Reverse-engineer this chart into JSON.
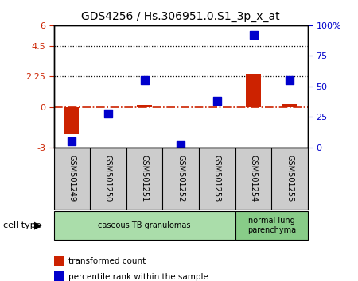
{
  "title": "GDS4256 / Hs.306951.0.S1_3p_x_at",
  "samples": [
    "GSM501249",
    "GSM501250",
    "GSM501251",
    "GSM501252",
    "GSM501253",
    "GSM501254",
    "GSM501255"
  ],
  "transformed_count": [
    -2.0,
    -0.05,
    0.15,
    -0.05,
    -0.05,
    2.4,
    0.22
  ],
  "percentile_rank": [
    5,
    28,
    55,
    2,
    38,
    92,
    55
  ],
  "left_ylim": [
    -3,
    6
  ],
  "right_ylim": [
    0,
    100
  ],
  "left_yticks": [
    -3,
    0,
    2.25,
    4.5,
    6
  ],
  "left_yticklabels": [
    "-3",
    "0",
    "2.25",
    "4.5",
    "6"
  ],
  "right_yticks": [
    0,
    25,
    50,
    75,
    100
  ],
  "right_yticklabels": [
    "0",
    "25",
    "50",
    "75",
    "100%"
  ],
  "hlines": [
    4.5,
    2.25
  ],
  "bar_color": "#cc2200",
  "dot_color": "#0000cc",
  "zero_line_color": "#cc2200",
  "cell_type_groups": [
    {
      "label": "caseous TB granulomas",
      "indices": [
        0,
        1,
        2,
        3,
        4
      ],
      "color": "#aaddaa"
    },
    {
      "label": "normal lung\nparenchyma",
      "indices": [
        5,
        6
      ],
      "color": "#88cc88"
    }
  ],
  "cell_type_label": "cell type",
  "legend_items": [
    {
      "color": "#cc2200",
      "label": "transformed count"
    },
    {
      "color": "#0000cc",
      "label": "percentile rank within the sample"
    }
  ],
  "bar_width": 0.4,
  "dot_size": 55,
  "background_color": "#ffffff",
  "plot_bg_color": "#ffffff",
  "spine_color": "#000000",
  "label_bg_color": "#cccccc",
  "figsize": [
    4.5,
    3.54
  ],
  "dpi": 100
}
